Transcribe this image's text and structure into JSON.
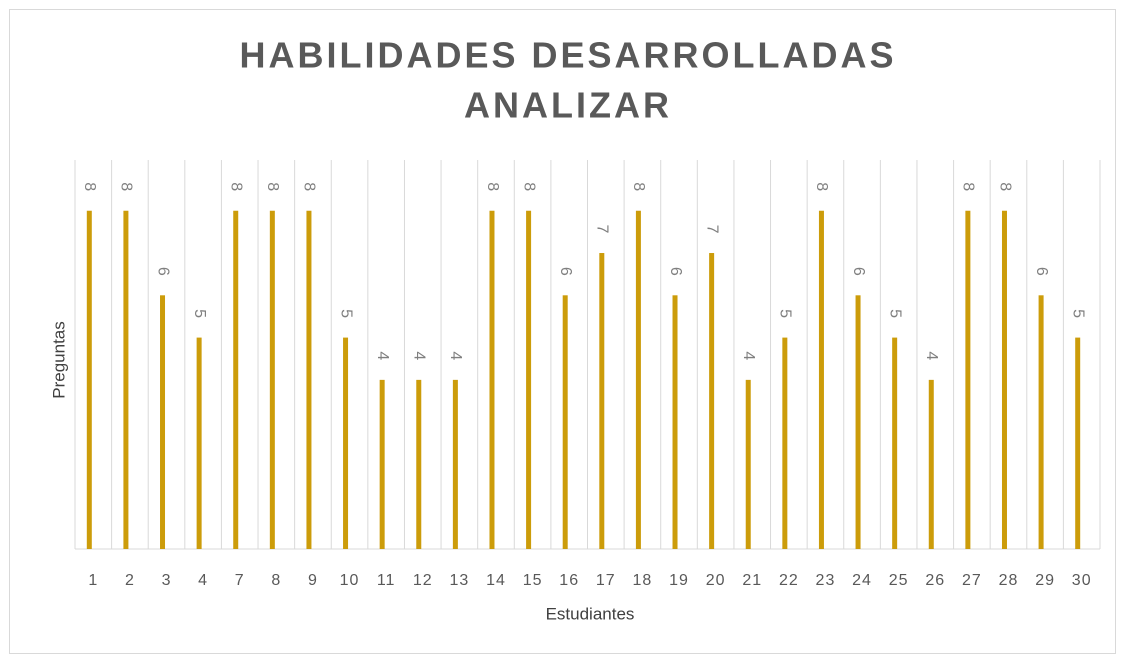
{
  "chart_data": {
    "type": "bar",
    "title": [
      "HABILIDADES DESARROLLADAS",
      "ANALIZAR"
    ],
    "x_label": "Estudiantes",
    "y_label": "Preguntas",
    "categories": [
      "1",
      "2",
      "3",
      "4",
      "7",
      "8",
      "9",
      "10",
      "11",
      "12",
      "13",
      "14",
      "15",
      "16",
      "17",
      "18",
      "19",
      "20",
      "21",
      "22",
      "23",
      "24",
      "25",
      "26",
      "27",
      "28",
      "29",
      "30"
    ],
    "values": [
      8,
      8,
      6,
      5,
      8,
      8,
      8,
      5,
      4,
      4,
      4,
      8,
      8,
      6,
      7,
      8,
      6,
      7,
      4,
      5,
      8,
      6,
      5,
      4,
      8,
      8,
      6,
      5
    ],
    "color": "#cc9c0a",
    "ylim": [
      0,
      9.2
    ],
    "grid": true
  }
}
